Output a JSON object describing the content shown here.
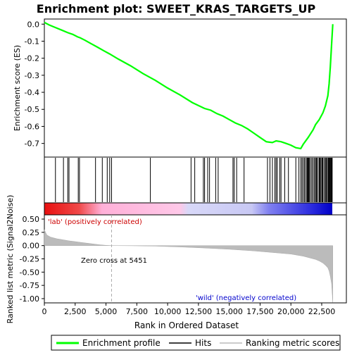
{
  "chart_data": {
    "type": "line",
    "title": "Enrichment plot: SWEET_KRAS_TARGETS_UP",
    "top_panel": {
      "ylabel": "Enrichment score (ES)",
      "ylim": [
        -0.78,
        0.03
      ],
      "yticks": [
        0.0,
        -0.1,
        -0.2,
        -0.3,
        -0.4,
        -0.5,
        -0.6,
        -0.7
      ],
      "ytick_labels": [
        "0.0",
        "-0.1",
        "-0.2",
        "-0.3",
        "-0.4",
        "-0.5",
        "-0.6",
        "-0.7"
      ],
      "series": [
        {
          "name": "Enrichment profile",
          "color": "#00ff00",
          "x": [
            0,
            400,
            900,
            1400,
            1900,
            2300,
            2700,
            2900,
            3300,
            3800,
            4300,
            4800,
            5300,
            6000,
            7000,
            8000,
            9000,
            10000,
            11000,
            12000,
            13000,
            13500,
            14000,
            14500,
            15000,
            15500,
            16000,
            16500,
            17000,
            17500,
            18000,
            18500,
            18800,
            19200,
            19600,
            20000,
            20400,
            20800,
            21000,
            21400,
            21800,
            22000,
            22300,
            22600,
            22800,
            23000,
            23100,
            23200,
            23300,
            23400
          ],
          "y": [
            0.01,
            -0.005,
            -0.02,
            -0.035,
            -0.05,
            -0.06,
            -0.075,
            -0.08,
            -0.095,
            -0.115,
            -0.135,
            -0.155,
            -0.175,
            -0.205,
            -0.245,
            -0.29,
            -0.33,
            -0.375,
            -0.415,
            -0.46,
            -0.495,
            -0.505,
            -0.525,
            -0.54,
            -0.56,
            -0.58,
            -0.595,
            -0.615,
            -0.64,
            -0.665,
            -0.69,
            -0.695,
            -0.685,
            -0.69,
            -0.7,
            -0.71,
            -0.725,
            -0.73,
            -0.705,
            -0.665,
            -0.62,
            -0.59,
            -0.56,
            -0.52,
            -0.48,
            -0.42,
            -0.35,
            -0.25,
            -0.12,
            0.0
          ]
        }
      ]
    },
    "hits_panel": {
      "legend_label": "Hits",
      "hit_positions": [
        900,
        1550,
        1900,
        2000,
        2750,
        2850,
        4150,
        4700,
        5100,
        5300,
        5450,
        8600,
        11900,
        12200,
        12900,
        13000,
        13250,
        13400,
        13900,
        14100,
        15300,
        15400,
        15600,
        16200,
        18100,
        18300,
        18500,
        18700,
        18800,
        18900,
        19100,
        19200,
        19500,
        19800,
        20400,
        20650,
        20800,
        20900,
        21000,
        21100,
        21200,
        21300,
        21350,
        21400,
        21450,
        21500,
        21600,
        21700,
        21800,
        21900,
        22000,
        22050,
        22100,
        22200,
        22300,
        22350,
        22400,
        22500,
        22550,
        22600,
        22700,
        22800,
        22850,
        22900,
        23000,
        23050,
        23100,
        23150,
        23200,
        23250,
        23300,
        23350
      ]
    },
    "color_bar": {
      "low_color": "#ff0000",
      "high_color": "#0000ff",
      "positive_label": "'lab' (positively correlated)",
      "negative_label": "'wild' (negatively correlated)"
    },
    "bottom_panel": {
      "ylabel": "Ranked list metric (Signal2Noise)",
      "ylim": [
        -1.08,
        0.58
      ],
      "yticks": [
        0.5,
        0.25,
        0.0,
        -0.25,
        -0.5,
        -0.75,
        -1.0
      ],
      "ytick_labels": [
        "0.50",
        "0.25",
        "0.00",
        "-0.25",
        "-0.50",
        "-0.75",
        "-1.00"
      ],
      "zero_cross_label": "Zero cross at 5451",
      "zero_cross": 5451,
      "legend_label": "Ranking metric scores",
      "metric": {
        "x": [
          0,
          200,
          500,
          1000,
          1500,
          2000,
          2500,
          3000,
          3500,
          4000,
          4500,
          5000,
          5451,
          7000,
          9000,
          11000,
          13000,
          15000,
          17000,
          18000,
          19000,
          20000,
          20500,
          21000,
          21500,
          22000,
          22300,
          22600,
          22800,
          23000,
          23100,
          23200,
          23300,
          23400
        ],
        "y": [
          0.3,
          0.2,
          0.16,
          0.13,
          0.11,
          0.09,
          0.075,
          0.06,
          0.045,
          0.03,
          0.015,
          0.005,
          0.0,
          -0.003,
          -0.01,
          -0.025,
          -0.045,
          -0.07,
          -0.1,
          -0.12,
          -0.14,
          -0.16,
          -0.18,
          -0.2,
          -0.23,
          -0.26,
          -0.29,
          -0.33,
          -0.37,
          -0.42,
          -0.48,
          -0.58,
          -0.72,
          -1.07
        ]
      }
    },
    "xaxis": {
      "xlabel": "Rank in Ordered Dataset",
      "xlim": [
        0,
        24500
      ],
      "xticks": [
        0,
        2500,
        5000,
        7500,
        10000,
        12500,
        15000,
        17500,
        20000,
        22500
      ],
      "xtick_labels": [
        "0",
        "2,500",
        "5,000",
        "7,500",
        "10,000",
        "12,500",
        "15,000",
        "17,500",
        "20,000",
        "22,500"
      ]
    },
    "legend": {
      "placement": "bottom",
      "entries": [
        {
          "label": "Enrichment profile",
          "color": "#00ff00"
        },
        {
          "label": "Hits",
          "color": "#000000"
        },
        {
          "label": "Ranking metric scores",
          "color": "#bbbbbb"
        }
      ]
    }
  }
}
